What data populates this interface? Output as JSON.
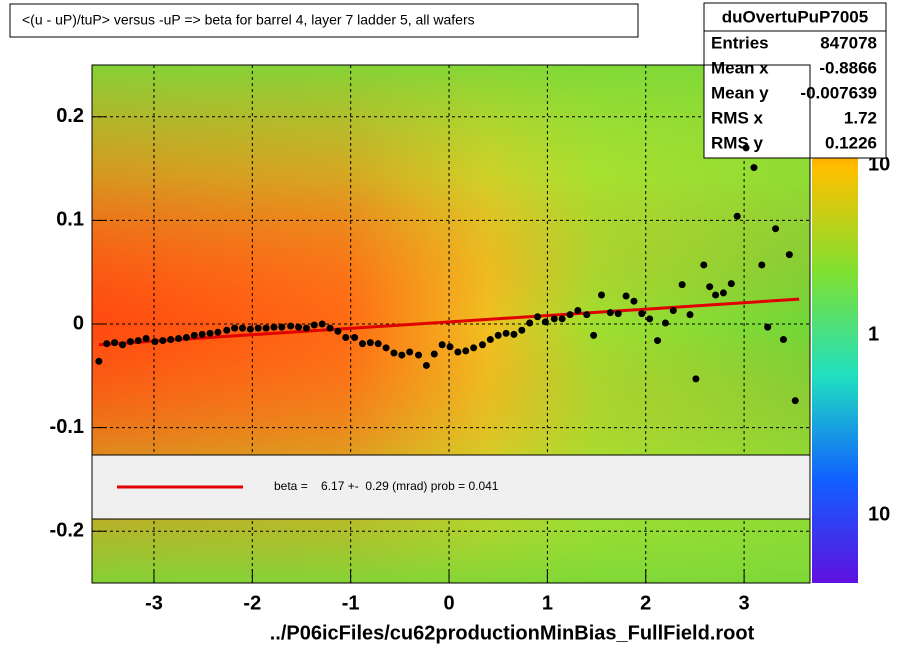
{
  "chart_data": {
    "type": "profile",
    "title": "<(u - uP)/tuP> versus  -uP => beta for barrel 4, layer 7 ladder 5, all wafers",
    "x_label": "../P06icFiles/cu62productionMinBias_FullField.root",
    "xlim": [
      -3.63,
      3.67
    ],
    "ylim": [
      -0.25,
      0.25
    ],
    "xticks": [
      -3,
      -2,
      -1,
      0,
      1,
      2,
      3
    ],
    "yticks": [
      -0.2,
      -0.1,
      0,
      0.1,
      0.2
    ],
    "grid": true,
    "color": "#000000",
    "x": [
      -3.56,
      -3.48,
      -3.4,
      -3.32,
      -3.24,
      -3.16,
      -3.08,
      -2.99,
      -2.91,
      -2.83,
      -2.75,
      -2.67,
      -2.59,
      -2.51,
      -2.43,
      -2.35,
      -2.26,
      -2.18,
      -2.1,
      -2.02,
      -1.94,
      -1.86,
      -1.78,
      -1.7,
      -1.61,
      -1.53,
      -1.45,
      -1.37,
      -1.29,
      -1.21,
      -1.13,
      -1.05,
      -0.96,
      -0.88,
      -0.8,
      -0.72,
      -0.64,
      -0.56,
      -0.48,
      -0.4,
      -0.31,
      -0.23,
      -0.15,
      -0.07,
      0.01,
      0.09,
      0.17,
      0.25,
      0.34,
      0.42,
      0.5,
      0.58,
      0.66,
      0.74,
      0.82,
      0.9,
      0.98,
      1.07,
      1.15,
      1.23,
      1.31,
      1.4,
      1.47,
      1.55,
      1.64,
      1.72,
      1.8,
      1.88,
      1.96,
      2.04,
      2.12,
      2.2,
      2.28,
      2.37,
      2.45,
      2.51,
      2.59,
      2.65,
      2.71,
      2.79,
      2.87,
      2.93,
      3.02,
      3.1,
      3.18,
      3.24,
      3.32,
      3.4,
      3.46,
      3.52
    ],
    "values": [
      -0.036,
      -0.019,
      -0.018,
      -0.02,
      -0.017,
      -0.016,
      -0.014,
      -0.017,
      -0.016,
      -0.015,
      -0.014,
      -0.013,
      -0.011,
      -0.01,
      -0.009,
      -0.008,
      -0.006,
      -0.004,
      -0.004,
      -0.005,
      -0.004,
      -0.004,
      -0.003,
      -0.003,
      -0.002,
      -0.003,
      -0.004,
      -0.001,
      0.0,
      -0.004,
      -0.007,
      -0.013,
      -0.013,
      -0.019,
      -0.018,
      -0.019,
      -0.023,
      -0.028,
      -0.03,
      -0.027,
      -0.03,
      -0.04,
      -0.029,
      -0.02,
      -0.022,
      -0.027,
      -0.026,
      -0.023,
      -0.02,
      -0.015,
      -0.011,
      -0.009,
      -0.01,
      -0.006,
      0.001,
      0.007,
      0.002,
      0.005,
      0.005,
      0.009,
      0.013,
      0.009,
      -0.011,
      0.028,
      0.011,
      0.01,
      0.027,
      0.022,
      0.01,
      0.005,
      -0.016,
      0.001,
      0.013,
      0.038,
      0.009,
      -0.053,
      0.057,
      0.036,
      0.028,
      0.03,
      0.039,
      0.104,
      0.17,
      0.151,
      0.057,
      -0.003,
      0.092,
      -0.015,
      0.067,
      -0.074
    ],
    "fit": {
      "color": "#e00000",
      "x": [
        -3.56,
        3.56
      ],
      "y": [
        -0.02,
        0.024
      ]
    },
    "legend_text": "beta =    6.17 +-  0.29 (mrad) prob = 0.041",
    "colorbar_labels": [
      "10",
      "1",
      "10"
    ],
    "stats": {
      "title": "duOvertuPuP7005",
      "rows": [
        {
          "label": "Entries",
          "value": 847078
        },
        {
          "label": "Mean x",
          "value": -0.8866
        },
        {
          "label": "Mean y",
          "value": -0.007639
        },
        {
          "label": "RMS x",
          "value": 1.72
        },
        {
          "label": "RMS y",
          "value": 0.1226
        }
      ]
    }
  }
}
